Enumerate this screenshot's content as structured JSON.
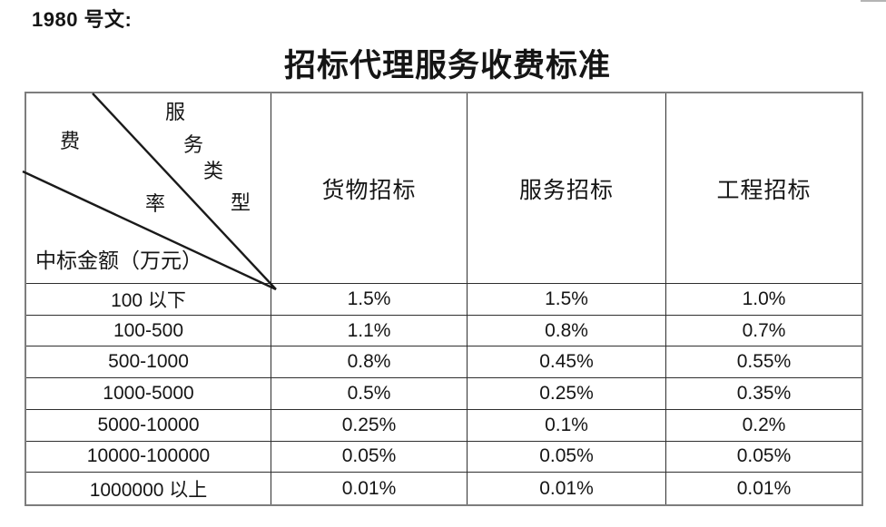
{
  "doc_ref": "1980 号文:",
  "title": "招标代理服务收费标准",
  "theme": {
    "outer": "#7d7d7d",
    "inner": "#2f2f2f",
    "ink": "#151515",
    "page": "#ffffff"
  },
  "table": {
    "corner": {
      "diagonal_label_chars": [
        "服",
        "务",
        "类",
        "型"
      ],
      "rate_label_chars": [
        "费",
        "率"
      ],
      "amount_axis_label": "中标金额（万元）"
    },
    "columns": [
      "货物招标",
      "服务招标",
      "工程招标"
    ],
    "rows": [
      {
        "amount": "100 以下",
        "values": [
          "1.5%",
          "1.5%",
          "1.0%"
        ]
      },
      {
        "amount": "100-500",
        "values": [
          "1.1%",
          "0.8%",
          "0.7%"
        ]
      },
      {
        "amount": "500-1000",
        "values": [
          "0.8%",
          "0.45%",
          "0.55%"
        ]
      },
      {
        "amount": "1000-5000",
        "values": [
          "0.5%",
          "0.25%",
          "0.35%"
        ]
      },
      {
        "amount": "5000-10000",
        "values": [
          "0.25%",
          "0.1%",
          "0.2%"
        ]
      },
      {
        "amount": "10000-100000",
        "values": [
          "0.05%",
          "0.05%",
          "0.05%"
        ]
      },
      {
        "amount": "1000000 以上",
        "values": [
          "0.01%",
          "0.01%",
          "0.01%"
        ]
      }
    ]
  }
}
